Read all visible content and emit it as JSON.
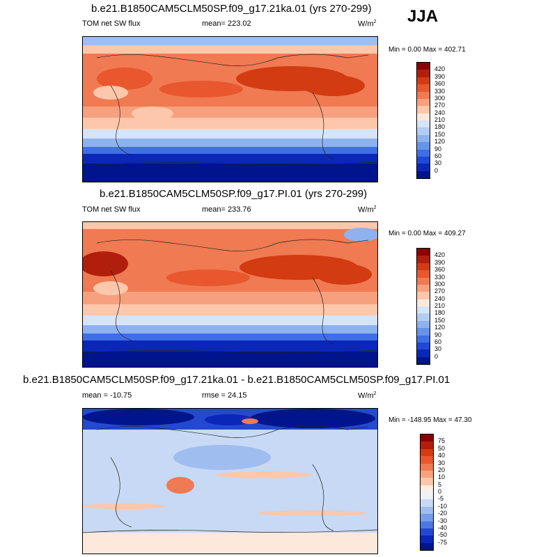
{
  "season": "JJA",
  "panels": [
    {
      "title": "b.e21.B1850CAM5CLM50SP.f09_g17.21ka.01 (yrs 270-299)",
      "left_label": "TOM net SW flux",
      "center_label": "mean= 223.02",
      "units": "W/m",
      "units_sup": "2",
      "minmax": "Min =   0.00 Max = 402.71",
      "colorbar_labels": [
        "420",
        "390",
        "360",
        "330",
        "300",
        "270",
        "240",
        "210",
        "180",
        "150",
        "120",
        "90",
        "60",
        "30",
        "0"
      ],
      "colorbar_colors": [
        "#8b0000",
        "#b21e0c",
        "#d33b12",
        "#e8572e",
        "#f07a52",
        "#f7a07e",
        "#fcc7aa",
        "#fde8dc",
        "#d6e4f7",
        "#b3cdf2",
        "#8db2ee",
        "#6693ea",
        "#3f6ee6",
        "#1f48d8",
        "#0a27b8",
        "#00148e"
      ]
    },
    {
      "title": "b.e21.B1850CAM5CLM50SP.f09_g17.PI.01 (yrs 270-299)",
      "left_label": "TOM net SW flux",
      "center_label": "mean= 233.76",
      "units": "W/m",
      "units_sup": "2",
      "minmax": "Min =   0.00 Max = 409.27",
      "colorbar_labels": [
        "420",
        "390",
        "360",
        "330",
        "300",
        "270",
        "240",
        "210",
        "180",
        "150",
        "120",
        "90",
        "60",
        "30",
        "0"
      ],
      "colorbar_colors": [
        "#8b0000",
        "#b21e0c",
        "#d33b12",
        "#e8572e",
        "#f07a52",
        "#f7a07e",
        "#fcc7aa",
        "#fde8dc",
        "#d6e4f7",
        "#b3cdf2",
        "#8db2ee",
        "#6693ea",
        "#3f6ee6",
        "#1f48d8",
        "#0a27b8",
        "#00148e"
      ]
    },
    {
      "title": "b.e21.B1850CAM5CLM50SP.f09_g17.21ka.01 - b.e21.B1850CAM5CLM50SP.f09_g17.PI.01",
      "left_label": "mean = -10.75",
      "center_label": "rmse =  24.15",
      "units": "W/m",
      "units_sup": "2",
      "minmax": "Min = -148.95 Max =  47.30",
      "colorbar_labels": [
        "75",
        "50",
        "40",
        "30",
        "20",
        "10",
        "5",
        "0",
        "-5",
        "-10",
        "-20",
        "-30",
        "-40",
        "-50",
        "-75"
      ],
      "colorbar_colors": [
        "#8b0000",
        "#b21e0c",
        "#d33b12",
        "#e8572e",
        "#f07a52",
        "#f7a07e",
        "#fcc7aa",
        "#fdeee6",
        "#eef3fb",
        "#c8d9f5",
        "#9fbdef",
        "#769de9",
        "#4d78e3",
        "#2449cf",
        "#0a27b8",
        "#00148e"
      ]
    }
  ],
  "chart_data": [
    {
      "type": "heatmap",
      "title": "b.e21.B1850CAM5CLM50SP.f09_g17.21ka.01 (yrs 270-299)",
      "variable": "TOM net SW flux",
      "units": "W/m2",
      "season": "JJA",
      "mean": 223.02,
      "min": 0.0,
      "max": 402.71,
      "colorbar_levels": [
        0,
        30,
        60,
        90,
        120,
        150,
        180,
        210,
        240,
        270,
        300,
        330,
        360,
        390,
        420
      ]
    },
    {
      "type": "heatmap",
      "title": "b.e21.B1850CAM5CLM50SP.f09_g17.PI.01 (yrs 270-299)",
      "variable": "TOM net SW flux",
      "units": "W/m2",
      "season": "JJA",
      "mean": 233.76,
      "min": 0.0,
      "max": 409.27,
      "colorbar_levels": [
        0,
        30,
        60,
        90,
        120,
        150,
        180,
        210,
        240,
        270,
        300,
        330,
        360,
        390,
        420
      ]
    },
    {
      "type": "heatmap",
      "title": "b.e21.B1850CAM5CLM50SP.f09_g17.21ka.01 - b.e21.B1850CAM5CLM50SP.f09_g17.PI.01",
      "units": "W/m2",
      "season": "JJA",
      "mean": -10.75,
      "rmse": 24.15,
      "min": -148.95,
      "max": 47.3,
      "colorbar_levels": [
        -75,
        -50,
        -40,
        -30,
        -20,
        -10,
        -5,
        0,
        5,
        10,
        20,
        30,
        40,
        50,
        75
      ]
    }
  ]
}
